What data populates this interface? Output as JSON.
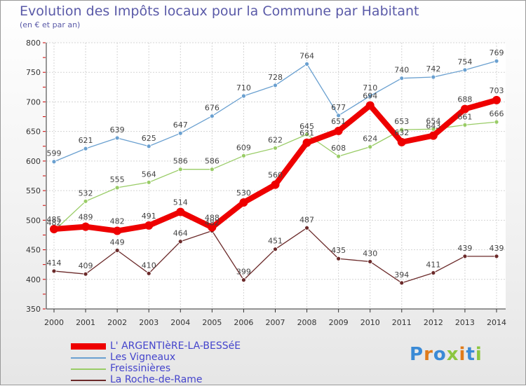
{
  "title": "Evolution des Impôts locaux pour la Commune par Habitant",
  "subtitle": "(en € et par an)",
  "logo": "Proxiti",
  "chart_data": {
    "type": "line",
    "title": "Evolution des Impôts locaux pour la Commune par Habitant",
    "subtitle": "(en € et par an)",
    "xlabel": "",
    "ylabel": "",
    "x": [
      "2000",
      "2001",
      "2002",
      "2003",
      "2004",
      "2005",
      "2006",
      "2007",
      "2008",
      "2009",
      "2010",
      "2011",
      "2012",
      "2013",
      "2014"
    ],
    "ylim": [
      350,
      800
    ],
    "yticks": [
      350,
      400,
      450,
      500,
      550,
      600,
      650,
      700,
      750,
      800
    ],
    "grid": true,
    "series": [
      {
        "name": "L' ARGENTIèRE-LA-BESSéE",
        "color": "#ee0000",
        "values": [
          485,
          489,
          482,
          491,
          514,
          488,
          530,
          560,
          631,
          651,
          694,
          632,
          643,
          688,
          703
        ]
      },
      {
        "name": "Les Vigneaux",
        "color": "#6aa0d0",
        "values": [
          599,
          621,
          639,
          625,
          647,
          676,
          710,
          728,
          764,
          677,
          710,
          740,
          742,
          754,
          769
        ]
      },
      {
        "name": "Freissinières",
        "color": "#99cc66",
        "values": [
          482,
          532,
          555,
          564,
          586,
          586,
          609,
          622,
          645,
          608,
          624,
          653,
          654,
          661,
          666
        ]
      },
      {
        "name": "La Roche-de-Rame",
        "color": "#6b2a2a",
        "values": [
          414,
          409,
          449,
          410,
          464,
          482,
          399,
          451,
          487,
          435,
          430,
          394,
          411,
          439,
          439
        ]
      }
    ]
  }
}
